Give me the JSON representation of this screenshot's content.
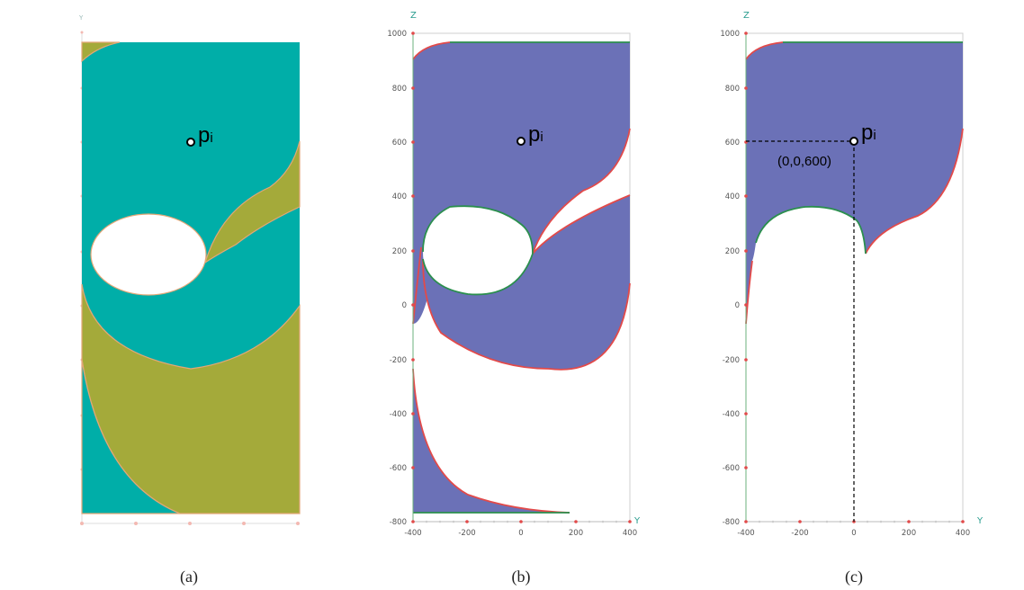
{
  "colors": {
    "teal": "#00aea8",
    "olive": "#a4aa3a",
    "blue_fill": "#6b71b7",
    "red_edge": "#e24a4a",
    "green_edge": "#2b8f4e",
    "axis_tick": "#e24a4a"
  },
  "panels": [
    {
      "id": "a",
      "caption": "(a)",
      "point_label": "p",
      "point_sub": "i",
      "axis_letter": "Y"
    },
    {
      "id": "b",
      "caption": "(b)",
      "point_label": "p",
      "point_sub": "i",
      "axis_z": "Z",
      "axis_y": "Y",
      "z_ticks": [
        "1000",
        "800",
        "600",
        "400",
        "200",
        "0",
        "-200",
        "-400",
        "-600",
        "-800"
      ],
      "y_ticks": [
        "-400",
        "-200",
        "0",
        "200",
        "400"
      ]
    },
    {
      "id": "c",
      "caption": "(c)",
      "point_label": "p",
      "point_sub": "i",
      "coord_label": "(0,0,600)",
      "axis_z": "Z",
      "axis_y": "Y",
      "z_ticks": [
        "1000",
        "800",
        "600",
        "400",
        "200",
        "0",
        "-200",
        "-400",
        "-600",
        "-800"
      ],
      "y_ticks": [
        "-400",
        "-200",
        "0",
        "200",
        "400"
      ]
    }
  ]
}
